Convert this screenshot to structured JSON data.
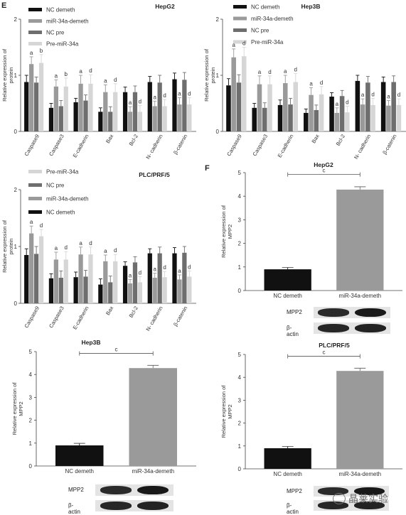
{
  "panel_labels": {
    "e": "E",
    "f": "F"
  },
  "colors": {
    "nc_demeth": "#111111",
    "mir34a_demeth": "#9a9a9a",
    "nc_pre": "#6e6e6e",
    "pre_mir34a": "#d6d6d6",
    "band": "#141414"
  },
  "chart_data": [
    {
      "id": "e-hepg2",
      "type": "bar",
      "title": "HepG2",
      "ylabel": "Relative expression of protein",
      "ylim": [
        0,
        2
      ],
      "yticks": [
        0,
        1,
        2
      ],
      "categories": [
        "Caspase9",
        "Caspase3",
        "E-cadherin",
        "Bax",
        "Bcl-2",
        "N- cadherin",
        "β-catenin"
      ],
      "legend": [
        "NC demeth",
        "miR-34a-demeth",
        "NC pre",
        "Pre-miR-34a"
      ],
      "series": [
        {
          "name": "NC demeth",
          "values": [
            0.88,
            0.42,
            0.52,
            0.35,
            0.7,
            0.88,
            0.93
          ],
          "errors": [
            0.12,
            0.08,
            0.07,
            0.07,
            0.09,
            0.1,
            0.11
          ]
        },
        {
          "name": "miR-34a-demeth",
          "values": [
            1.2,
            0.8,
            0.85,
            0.7,
            0.35,
            0.45,
            0.48
          ],
          "errors": [
            0.13,
            0.12,
            0.15,
            0.13,
            0.09,
            0.09,
            0.12
          ]
        },
        {
          "name": "NC pre",
          "values": [
            0.87,
            0.45,
            0.55,
            0.35,
            0.7,
            0.87,
            0.92
          ],
          "errors": [
            0.1,
            0.1,
            0.1,
            0.09,
            0.11,
            0.13,
            0.13
          ]
        },
        {
          "name": "Pre-miR-34a",
          "values": [
            1.22,
            0.8,
            0.85,
            0.7,
            0.35,
            0.45,
            0.48
          ],
          "errors": [
            0.15,
            0.15,
            0.16,
            0.15,
            0.11,
            0.12,
            0.12
          ]
        }
      ],
      "annotations": [
        "a",
        "b",
        "a",
        "b",
        "a",
        "d",
        "a",
        "d",
        "a",
        "d",
        "a",
        "d",
        "a",
        "d"
      ]
    },
    {
      "id": "e-hep3b",
      "type": "bar",
      "title": "Hep3B",
      "ylabel": "Relative expression of protein",
      "ylim": [
        0,
        2
      ],
      "yticks": [
        0,
        1,
        2
      ],
      "categories": [
        "Caspase9",
        "Caspase3",
        "E-cadherin",
        "Bax",
        "Bcl-2",
        "N- cadherin",
        "β-catenin"
      ],
      "legend": [
        "NC demeth",
        "miR-34a-demeth",
        "NC pre",
        "Pre-miR-34a"
      ],
      "series": [
        {
          "name": "NC demeth",
          "values": [
            0.82,
            0.42,
            0.47,
            0.33,
            0.62,
            0.9,
            0.88
          ],
          "errors": [
            0.12,
            0.08,
            0.09,
            0.07,
            0.07,
            0.1,
            0.09
          ]
        },
        {
          "name": "miR-34a-demeth",
          "values": [
            1.32,
            0.84,
            0.86,
            0.65,
            0.33,
            0.48,
            0.46
          ],
          "errors": [
            0.15,
            0.15,
            0.14,
            0.13,
            0.09,
            0.1,
            0.09
          ]
        },
        {
          "name": "NC pre",
          "values": [
            0.87,
            0.42,
            0.48,
            0.38,
            0.63,
            0.87,
            0.88
          ],
          "errors": [
            0.14,
            0.09,
            0.11,
            0.09,
            0.1,
            0.11,
            0.11
          ]
        },
        {
          "name": "Pre-miR-34a",
          "values": [
            1.34,
            0.84,
            0.88,
            0.66,
            0.34,
            0.47,
            0.47
          ],
          "errors": [
            0.16,
            0.15,
            0.15,
            0.14,
            0.11,
            0.12,
            0.11
          ]
        }
      ],
      "annotations": [
        "a",
        "d",
        "a",
        "d",
        "a",
        "d",
        "a",
        "d",
        "a",
        "d",
        "a",
        "d",
        "a",
        "d"
      ]
    },
    {
      "id": "e-plc",
      "type": "bar",
      "title": "PLC/PRF/5",
      "ylabel": "Relative expression of protein",
      "ylim": [
        0,
        2
      ],
      "yticks": [
        0,
        1,
        2
      ],
      "categories": [
        "Caspase9",
        "Caspase3",
        "E-cadherin",
        "Bax",
        "Bcl-2",
        "N- cadherin",
        "β-catenin"
      ],
      "legend": [
        "Pre-miR-34a",
        "NC pre",
        "miR-34a-demeth",
        "NC demeth"
      ],
      "series": [
        {
          "name": "NC demeth",
          "values": [
            0.85,
            0.44,
            0.46,
            0.33,
            0.66,
            0.88,
            0.88
          ],
          "errors": [
            0.11,
            0.08,
            0.09,
            0.1,
            0.07,
            0.08,
            0.1
          ]
        },
        {
          "name": "miR-34a-demeth",
          "values": [
            1.23,
            0.77,
            0.86,
            0.74,
            0.35,
            0.45,
            0.42
          ],
          "errors": [
            0.13,
            0.13,
            0.13,
            0.11,
            0.07,
            0.08,
            0.08
          ]
        },
        {
          "name": "NC pre",
          "values": [
            0.87,
            0.45,
            0.47,
            0.37,
            0.72,
            0.88,
            0.89
          ],
          "errors": [
            0.13,
            0.12,
            0.11,
            0.11,
            0.1,
            0.11,
            0.11
          ]
        },
        {
          "name": "Pre-miR-34a",
          "values": [
            1.18,
            0.77,
            0.86,
            0.74,
            0.37,
            0.46,
            0.47
          ],
          "errors": [
            0.12,
            0.14,
            0.13,
            0.12,
            0.1,
            0.1,
            0.1
          ]
        }
      ],
      "annotations": [
        "a",
        "d",
        "a",
        "d",
        "a",
        "d",
        "a",
        "d",
        "a",
        "d",
        "a",
        "d",
        "a",
        "d"
      ]
    },
    {
      "id": "f-hepg2",
      "type": "bar",
      "title": "HepG2",
      "ylabel": "Relative expression of MPP2",
      "ylim": [
        0,
        5
      ],
      "yticks": [
        0,
        1,
        2,
        3,
        4,
        5
      ],
      "categories": [
        "NC demeth",
        "miR-34a-demeth"
      ],
      "values": [
        0.9,
        4.28
      ],
      "errors": [
        0.08,
        0.12
      ],
      "significance": "c"
    },
    {
      "id": "hep3b-mpp2",
      "type": "bar",
      "title": "Hep3B",
      "ylabel": "Relative expression of MPP2",
      "ylim": [
        0,
        5
      ],
      "yticks": [
        0,
        1,
        2,
        3,
        4,
        5
      ],
      "categories": [
        "NC demeth",
        "miR-34a-demeth"
      ],
      "values": [
        0.9,
        4.28
      ],
      "errors": [
        0.09,
        0.12
      ],
      "significance": "c"
    },
    {
      "id": "plc-mpp2",
      "type": "bar",
      "title": "PLC/PRF/5",
      "ylabel": "Relative expression of MPP2",
      "ylim": [
        0,
        5
      ],
      "yticks": [
        0,
        1,
        2,
        3,
        4,
        5
      ],
      "categories": [
        "NC demeth",
        "miR-34a-demeth"
      ],
      "values": [
        0.9,
        4.28
      ],
      "errors": [
        0.08,
        0.12
      ],
      "significance": "c"
    }
  ],
  "blots": {
    "f-hepg2": {
      "rows": [
        "MPP2",
        "β-actin"
      ],
      "bands": [
        [
          0.75,
          0.95
        ],
        [
          0.8,
          0.85
        ]
      ]
    },
    "hep3b-mpp2": {
      "rows": [
        "MPP2",
        "β-actin"
      ],
      "bands": [
        [
          0.75,
          0.95
        ],
        [
          0.8,
          0.85
        ]
      ]
    },
    "plc-mpp2": {
      "rows": [
        "MPP2",
        "β-actin"
      ],
      "bands": [
        [
          0.75,
          0.95
        ],
        [
          0.8,
          0.85
        ]
      ]
    }
  },
  "watermark": {
    "text": "晶莱实验",
    "icon": "chat-bubble-icon"
  }
}
